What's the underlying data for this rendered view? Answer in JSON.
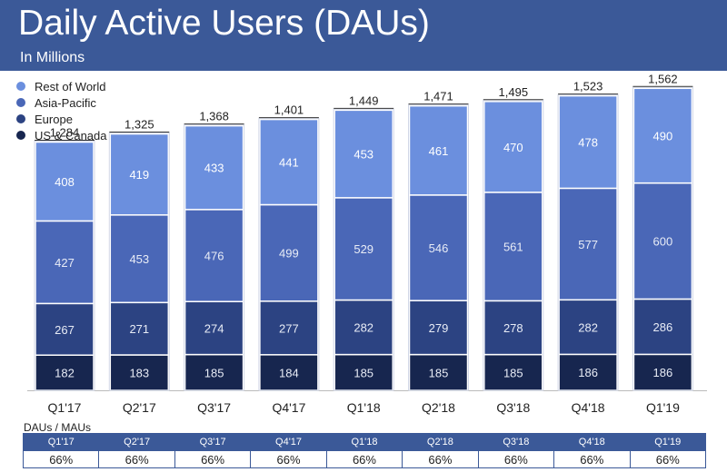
{
  "header": {
    "title": "Daily Active Users (DAUs)",
    "subtitle": "In Millions"
  },
  "colors": {
    "header_bg": "#3b5998",
    "rest_of_world": "#6b8fde",
    "asia_pacific": "#4a67b7",
    "europe": "#2c4382",
    "us_canada": "#17264f"
  },
  "chart_data": {
    "type": "bar",
    "stacked": true,
    "title": "Daily Active Users (DAUs)",
    "subtitle": "In Millions",
    "categories": [
      "Q1'17",
      "Q2'17",
      "Q3'17",
      "Q4'17",
      "Q1'18",
      "Q2'18",
      "Q3'18",
      "Q4'18",
      "Q1'19"
    ],
    "series": [
      {
        "name": "US & Canada",
        "values": [
          182,
          183,
          185,
          184,
          185,
          185,
          185,
          186,
          186
        ],
        "color": "#17264f"
      },
      {
        "name": "Europe",
        "values": [
          267,
          271,
          274,
          277,
          282,
          279,
          278,
          282,
          286
        ],
        "color": "#2c4382"
      },
      {
        "name": "Asia-Pacific",
        "values": [
          427,
          453,
          476,
          499,
          529,
          546,
          561,
          577,
          600
        ],
        "color": "#4a67b7"
      },
      {
        "name": "Rest of World",
        "values": [
          408,
          419,
          433,
          441,
          453,
          461,
          470,
          478,
          490
        ],
        "color": "#6b8fde"
      }
    ],
    "totals": [
      "1,284",
      "1,325",
      "1,368",
      "1,401",
      "1,449",
      "1,471",
      "1,495",
      "1,523",
      "1,562"
    ],
    "legend_position": "top-left",
    "grid": false
  },
  "dau_mau": {
    "label": "DAUs / MAUs",
    "quarters": [
      "Q1'17",
      "Q2'17",
      "Q3'17",
      "Q4'17",
      "Q1'18",
      "Q2'18",
      "Q3'18",
      "Q4'18",
      "Q1'19"
    ],
    "values": [
      "66%",
      "66%",
      "66%",
      "66%",
      "66%",
      "66%",
      "66%",
      "66%",
      "66%"
    ]
  }
}
